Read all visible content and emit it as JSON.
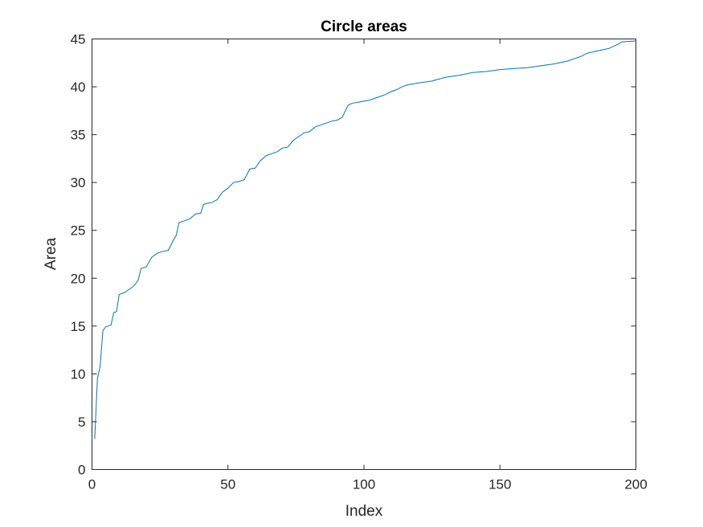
{
  "chart_data": {
    "type": "line",
    "title": "Circle areas",
    "xlabel": "Index",
    "ylabel": "Area",
    "xlim": [
      0,
      200
    ],
    "ylim": [
      0,
      45
    ],
    "xticks": [
      0,
      50,
      100,
      150,
      200
    ],
    "yticks": [
      0,
      5,
      10,
      15,
      20,
      25,
      30,
      35,
      40,
      45
    ],
    "grid": false,
    "color": "#0072BD",
    "series": [
      {
        "x": [
          1,
          2,
          3,
          4,
          5,
          6,
          7,
          8,
          9,
          10,
          11,
          12,
          13,
          14,
          15,
          16,
          17,
          18,
          19,
          20,
          22,
          24,
          26,
          28,
          30,
          31,
          32,
          34,
          36,
          38,
          40,
          41,
          42,
          44,
          46,
          48,
          50,
          52,
          54,
          56,
          58,
          60,
          62,
          64,
          66,
          68,
          70,
          72,
          74,
          76,
          78,
          80,
          82,
          84,
          86,
          88,
          90,
          92,
          94,
          95,
          96,
          98,
          100,
          102,
          104,
          106,
          108,
          110,
          112,
          114,
          116,
          118,
          120,
          125,
          130,
          135,
          140,
          145,
          150,
          155,
          160,
          165,
          170,
          175,
          180,
          182,
          185,
          190,
          193,
          195,
          200
        ],
        "y": [
          3.2,
          9.5,
          10.8,
          14.5,
          14.9,
          15.0,
          15.1,
          16.4,
          16.5,
          18.3,
          18.4,
          18.5,
          18.7,
          18.9,
          19.1,
          19.4,
          19.8,
          21.0,
          21.1,
          21.2,
          22.2,
          22.6,
          22.8,
          22.9,
          24.0,
          24.5,
          25.8,
          26.0,
          26.2,
          26.7,
          26.8,
          27.7,
          27.8,
          27.9,
          28.2,
          29.0,
          29.4,
          30.0,
          30.1,
          30.3,
          31.4,
          31.5,
          32.3,
          32.8,
          33.0,
          33.2,
          33.6,
          33.7,
          34.4,
          34.8,
          35.2,
          35.3,
          35.8,
          36.0,
          36.2,
          36.4,
          36.5,
          36.8,
          38.0,
          38.2,
          38.3,
          38.4,
          38.5,
          38.6,
          38.8,
          39.0,
          39.2,
          39.5,
          39.7,
          40.0,
          40.2,
          40.3,
          40.4,
          40.6,
          41.0,
          41.2,
          41.5,
          41.6,
          41.8,
          41.9,
          42.0,
          42.2,
          42.4,
          42.7,
          43.2,
          43.5,
          43.7,
          44.0,
          44.4,
          44.7,
          44.8
        ]
      }
    ]
  }
}
